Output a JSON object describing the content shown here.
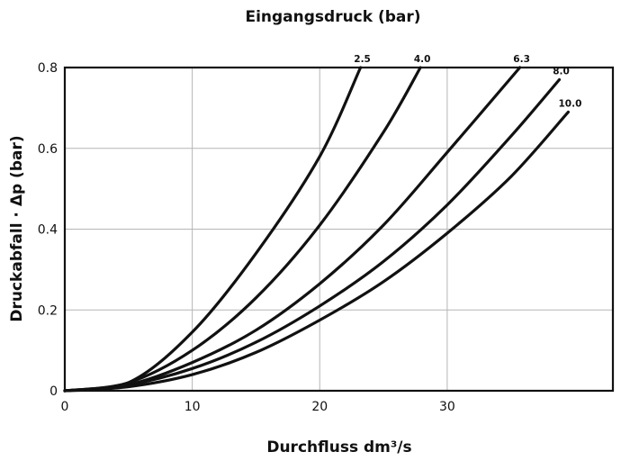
{
  "chart_data": {
    "type": "line",
    "title": "Eingangsdruck (bar)",
    "xlabel": "Durchfluss dm³/s",
    "ylabel": "Druckabfall · Δp (bar)",
    "xlim": [
      0,
      43
    ],
    "ylim": [
      0,
      0.8
    ],
    "x_ticks": [
      0,
      10,
      20,
      30
    ],
    "x_tick_labels": [
      "0",
      "10",
      "20",
      "30"
    ],
    "y_ticks": [
      0,
      0.2,
      0.4,
      0.6,
      0.8
    ],
    "y_tick_labels": [
      "0",
      "0.2",
      "0.4",
      "0.6",
      "0.8"
    ],
    "grid": true,
    "series": [
      {
        "name": "2.5",
        "x": [
          0,
          5,
          10,
          15,
          20,
          23.2
        ],
        "y": [
          0,
          0.02,
          0.145,
          0.34,
          0.58,
          0.8
        ]
      },
      {
        "name": "4.0",
        "x": [
          0,
          5,
          10,
          15,
          20,
          25,
          27.9
        ],
        "y": [
          0,
          0.02,
          0.1,
          0.23,
          0.41,
          0.64,
          0.8
        ]
      },
      {
        "name": "6.3",
        "x": [
          0,
          5,
          10,
          15,
          20,
          25,
          30,
          35.7
        ],
        "y": [
          0,
          0.015,
          0.07,
          0.15,
          0.265,
          0.41,
          0.59,
          0.8
        ]
      },
      {
        "name": "8.0",
        "x": [
          0,
          5,
          10,
          15,
          20,
          25,
          30,
          35,
          38.8
        ],
        "y": [
          0,
          0.015,
          0.055,
          0.12,
          0.21,
          0.32,
          0.46,
          0.63,
          0.77
        ]
      },
      {
        "name": "10.0",
        "x": [
          0,
          5,
          10,
          15,
          20,
          25,
          30,
          35,
          39.5
        ],
        "y": [
          0,
          0.01,
          0.04,
          0.095,
          0.175,
          0.27,
          0.39,
          0.53,
          0.69
        ]
      }
    ]
  }
}
